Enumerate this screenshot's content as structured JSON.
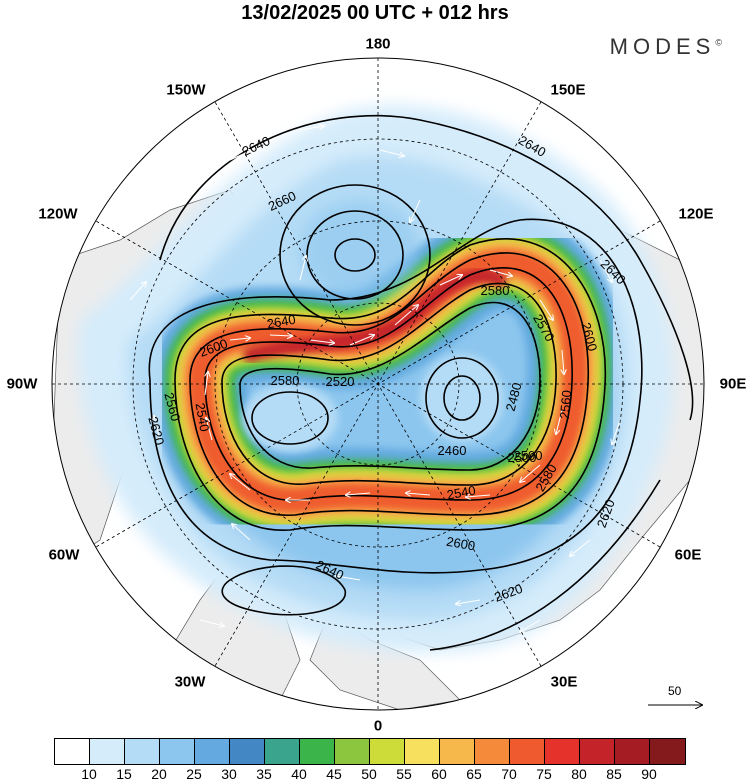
{
  "header": {
    "title": "13/02/2025  00 UTC  + 012 hrs",
    "logo": "MODES",
    "logo_mark": "©"
  },
  "map": {
    "projection": "north polar stereographic",
    "meridian_labels": [
      "180",
      "150E",
      "120E",
      "90E",
      "60E",
      "30E",
      "0",
      "30W",
      "60W",
      "90W",
      "120W",
      "150W"
    ],
    "contour_labels": [
      "2640",
      "2660",
      "2640",
      "2640",
      "2580",
      "2570",
      "2600",
      "2640",
      "2600",
      "2560",
      "2520",
      "2580",
      "2620",
      "2480",
      "2560",
      "2460",
      "2500",
      "2540",
      "2580",
      "2540",
      "2500",
      "2620",
      "2600",
      "2620",
      "2640"
    ],
    "reference_vector": "50"
  },
  "colorbar": {
    "ticks": [
      "10",
      "15",
      "20",
      "25",
      "30",
      "35",
      "40",
      "45",
      "50",
      "55",
      "60",
      "65",
      "70",
      "75",
      "80",
      "85",
      "90"
    ],
    "colors": [
      "#ffffff",
      "#d5ecfb",
      "#b5dcf6",
      "#8cc6ee",
      "#64aae0",
      "#4387c4",
      "#3aa48c",
      "#3bb54a",
      "#8cc63f",
      "#cddc39",
      "#f6e05e",
      "#f7b84b",
      "#f58b3a",
      "#ef5b2f",
      "#e5322b",
      "#c4232a",
      "#a51d22",
      "#851a1c"
    ]
  }
}
